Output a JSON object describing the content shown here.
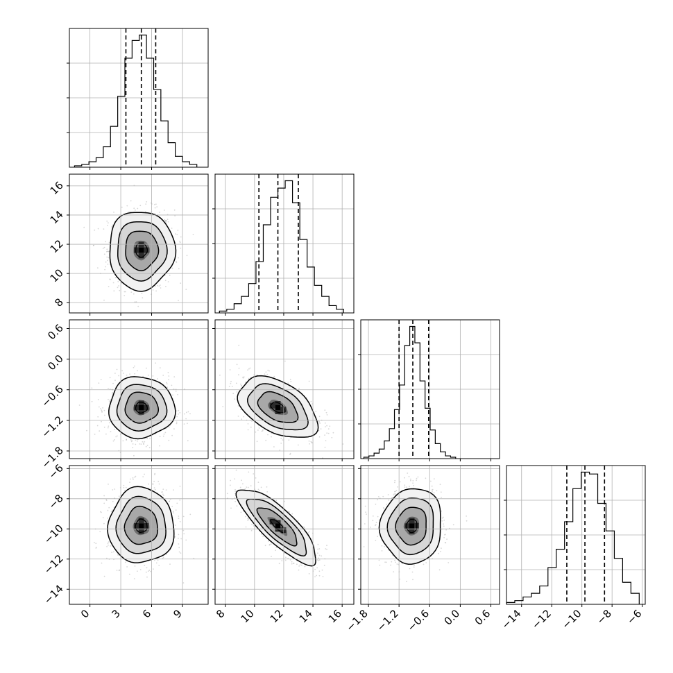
{
  "chart_data": {
    "type": "corner",
    "grid": true,
    "parameters": [
      {
        "index": 0,
        "xlim": [
          -2.0,
          11.5
        ],
        "xticks": [
          0,
          3,
          6,
          9
        ],
        "xtick_labels": [
          "0",
          "3",
          "6",
          "9"
        ],
        "yticks": [],
        "ytick_labels": []
      },
      {
        "index": 1,
        "xlim": [
          7.3,
          16.8
        ],
        "xticks": [
          8,
          10,
          12,
          14,
          16
        ],
        "xtick_labels": [
          "8",
          "10",
          "12",
          "14",
          "16"
        ],
        "yticks": [
          8,
          10,
          12,
          14,
          16
        ],
        "ytick_labels": [
          "8",
          "10",
          "12",
          "14",
          "16"
        ]
      },
      {
        "index": 2,
        "xlim": [
          -1.95,
          0.77
        ],
        "xticks": [
          -1.8,
          -1.2,
          -0.6,
          0.0,
          0.6
        ],
        "xtick_labels": [
          "−1.8",
          "−1.2",
          "−0.6",
          "0.0",
          "0.6"
        ],
        "yticks": [
          -1.8,
          -1.2,
          -0.6,
          0.0,
          0.6
        ],
        "ytick_labels": [
          "−1.8",
          "−1.2",
          "−0.6",
          "0.0",
          "0.6"
        ]
      },
      {
        "index": 3,
        "xlim": [
          -15.0,
          -5.8
        ],
        "xticks": [
          -14,
          -12,
          -10,
          -8,
          -6
        ],
        "xtick_labels": [
          "−14",
          "−12",
          "−10",
          "−8",
          "−6"
        ],
        "yticks": [
          -14,
          -12,
          -10,
          -8,
          -6
        ],
        "ytick_labels": [
          "−14",
          "−12",
          "−10",
          "−8",
          "−6"
        ]
      }
    ],
    "histograms": [
      {
        "param": 0,
        "quantiles": [
          3.5,
          5.0,
          6.4
        ],
        "bins": [
          -1.5,
          -0.8,
          -0.1,
          0.6,
          1.3,
          2.0,
          2.7,
          3.4,
          4.1,
          4.8,
          5.5,
          6.2,
          6.9,
          7.6,
          8.3,
          9.0,
          9.7,
          10.4
        ],
        "counts": [
          1,
          2,
          4,
          7,
          15,
          30,
          52,
          80,
          93,
          97,
          80,
          57,
          34,
          18,
          8,
          4,
          2
        ]
      },
      {
        "param": 1,
        "quantiles": [
          10.3,
          11.6,
          13.0
        ],
        "bins": [
          7.6,
          8.1,
          8.6,
          9.1,
          9.6,
          10.1,
          10.6,
          11.1,
          11.6,
          12.1,
          12.6,
          13.1,
          13.6,
          14.1,
          14.6,
          15.1,
          15.6,
          16.1
        ],
        "counts": [
          1,
          2,
          5,
          9,
          16,
          28,
          48,
          63,
          68,
          72,
          60,
          40,
          25,
          15,
          9,
          4,
          2
        ]
      },
      {
        "param": 2,
        "quantiles": [
          -1.2,
          -0.93,
          -0.62
        ],
        "bins": [
          -1.89,
          -1.79,
          -1.69,
          -1.59,
          -1.49,
          -1.39,
          -1.29,
          -1.19,
          -1.09,
          -0.99,
          -0.89,
          -0.79,
          -0.69,
          -0.59,
          -0.49,
          -0.39,
          -0.29,
          -0.19,
          -0.09
        ],
        "counts": [
          1,
          2,
          4,
          7,
          13,
          22,
          36,
          54,
          83,
          97,
          85,
          57,
          37,
          21,
          11,
          5,
          2,
          1
        ]
      },
      {
        "param": 3,
        "quantiles": [
          -11.0,
          -9.8,
          -8.5
        ],
        "bins": [
          -15.0,
          -14.45,
          -13.9,
          -13.35,
          -12.8,
          -12.25,
          -11.7,
          -11.15,
          -10.6,
          -10.05,
          -9.5,
          -8.95,
          -8.4,
          -7.85,
          -7.3,
          -6.75,
          -6.2
        ],
        "counts": [
          1,
          2,
          4,
          6,
          10,
          20,
          30,
          45,
          63,
          72,
          71,
          55,
          40,
          25,
          12,
          6
        ]
      }
    ],
    "pairs": [
      {
        "xparam": 0,
        "yparam": 1,
        "mean": [
          5.0,
          11.6
        ],
        "sd": [
          1.6,
          1.35
        ],
        "rho": 0.0
      },
      {
        "xparam": 0,
        "yparam": 2,
        "mean": [
          5.0,
          -0.95
        ],
        "sd": [
          1.6,
          0.3
        ],
        "rho": 0.0
      },
      {
        "xparam": 1,
        "yparam": 2,
        "mean": [
          11.6,
          -0.95
        ],
        "sd": [
          1.35,
          0.3
        ],
        "rho": -0.45
      },
      {
        "xparam": 0,
        "yparam": 3,
        "mean": [
          5.0,
          -9.8
        ],
        "sd": [
          1.6,
          1.25
        ],
        "rho": 0.0
      },
      {
        "xparam": 1,
        "yparam": 3,
        "mean": [
          11.6,
          -9.8
        ],
        "sd": [
          1.35,
          1.25
        ],
        "rho": -0.82
      },
      {
        "xparam": 2,
        "yparam": 3,
        "mean": [
          -0.95,
          -9.8
        ],
        "sd": [
          0.3,
          1.25
        ],
        "rho": 0.05
      }
    ],
    "contour_sigma_levels": [
      0.5,
      1.0,
      1.5,
      2.0
    ]
  }
}
